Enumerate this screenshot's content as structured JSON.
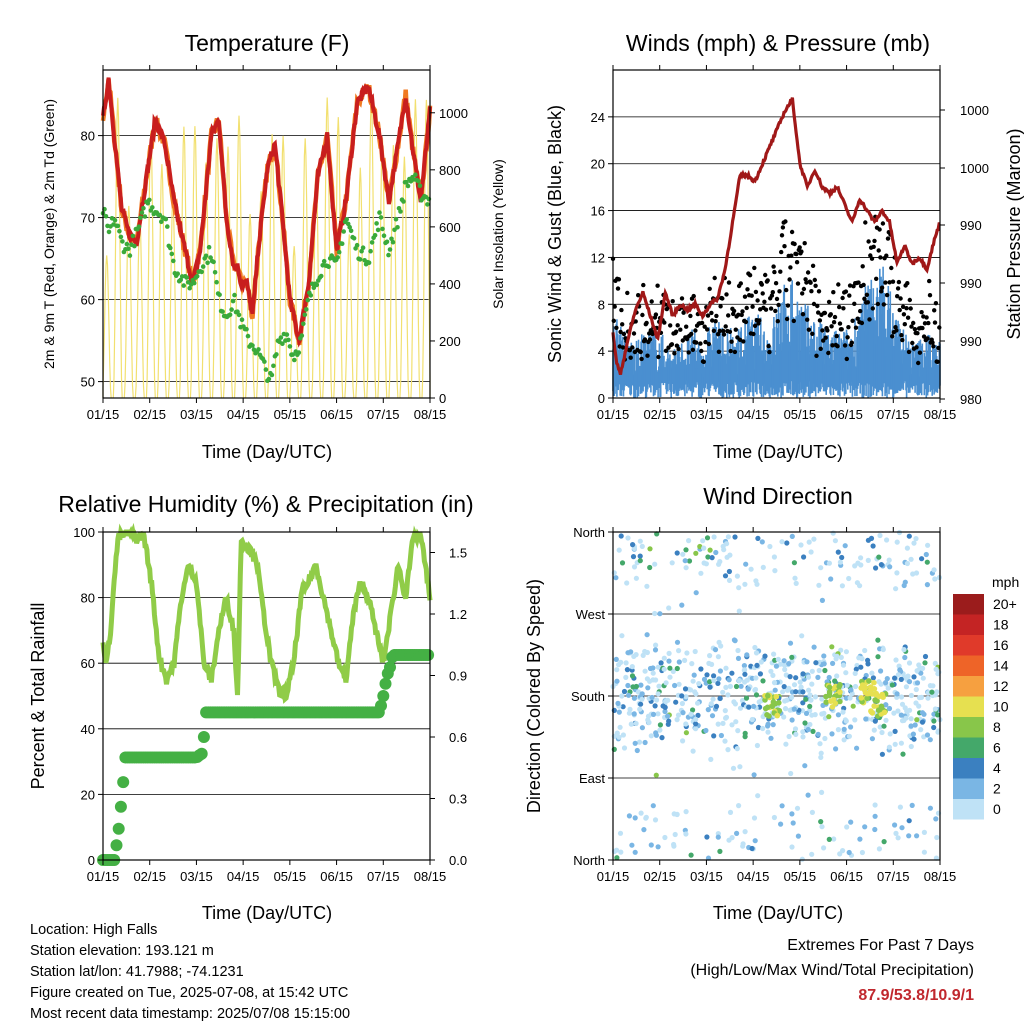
{
  "colors": {
    "temp2m": "#c81e1e",
    "temp9m": "#f07a22",
    "dewpoint": "#3aaa3a",
    "solar": "#f2e070",
    "wind": "#4a8fd0",
    "gust": "#000000",
    "pressure": "#a01818",
    "rh": "#90cc48",
    "precip": "#44b044",
    "extremes": "#c0282e"
  },
  "chart_data": [
    {
      "type": "line",
      "title": "Temperature (F)",
      "xlabel": "Time (Day/UTC)",
      "ylabel": "2m & 9m T (Red, Orange) & 2m Td (Green)",
      "y2label": "Solar Insolation (Yellow)",
      "xticks": [
        "01/15",
        "02/15",
        "03/15",
        "04/15",
        "05/15",
        "06/15",
        "07/15",
        "08/15"
      ],
      "ylim": [
        48,
        88
      ],
      "yticks": [
        50,
        60,
        70,
        80
      ],
      "y2lim": [
        0,
        1150
      ],
      "y2ticks": [
        0,
        200,
        400,
        600,
        800,
        1000
      ],
      "series": [
        {
          "role": "temp2m",
          "x": [
            0,
            3,
            6,
            10,
            14,
            18,
            24,
            28,
            33,
            38,
            44,
            48,
            52,
            58,
            62,
            66,
            70,
            72,
            74,
            77,
            80,
            83,
            88,
            92,
            96,
            100,
            105,
            110,
            115,
            120,
            125,
            130,
            136,
            142,
            148,
            153,
            158,
            162,
            166,
            170,
            175
          ],
          "values": [
            82,
            87,
            80,
            71,
            68,
            67,
            76,
            82,
            79,
            72,
            66,
            62,
            66,
            80,
            82,
            70,
            64,
            64,
            62,
            62,
            58,
            66,
            76,
            79,
            70,
            60,
            55,
            62,
            75,
            80,
            66,
            72,
            84,
            86,
            80,
            72,
            79,
            85,
            78,
            72,
            83
          ]
        },
        {
          "role": "dewpoint",
          "x": [
            0,
            3,
            6,
            10,
            14,
            18,
            24,
            28,
            33,
            38,
            44,
            48,
            52,
            58,
            62,
            66,
            70,
            74,
            78,
            82,
            86,
            90,
            94,
            98,
            102,
            106,
            110,
            115,
            120,
            125,
            130,
            136,
            142,
            148,
            153,
            158,
            162,
            166,
            170,
            175
          ],
          "values": [
            71,
            68,
            70,
            67,
            66,
            68,
            72,
            71,
            70,
            64,
            62,
            62,
            64,
            66,
            60,
            58,
            60,
            57,
            55,
            54,
            52,
            50,
            55,
            56,
            53,
            55,
            60,
            63,
            65,
            64,
            70,
            66,
            65,
            70,
            66,
            70,
            74,
            75,
            73,
            72
          ]
        }
      ]
    },
    {
      "type": "scatter",
      "title": "Winds (mph) & Pressure (mb)",
      "xlabel": "Time (Day/UTC)",
      "ylabel": "Sonic Wind & Gust (Blue, Black)",
      "y2label": "Station Pressure (Maroon)",
      "xticks": [
        "01/15",
        "02/15",
        "03/15",
        "04/15",
        "05/15",
        "06/15",
        "07/15",
        "08/15"
      ],
      "ylim": [
        0,
        28
      ],
      "yticks": [
        0,
        4,
        8,
        12,
        16,
        20,
        24
      ],
      "y2ticks": [
        "980",
        "990",
        "990",
        "990",
        "990",
        "1000",
        "1000"
      ],
      "series": [
        {
          "role": "pressure",
          "x": [
            0,
            2,
            4,
            8,
            12,
            16,
            20,
            24,
            28,
            32,
            36,
            40,
            44,
            48,
            52,
            56,
            60,
            64,
            68,
            72,
            76,
            80,
            84,
            88,
            92,
            96,
            100,
            104,
            108,
            112,
            116,
            120,
            124,
            128,
            132,
            136,
            140,
            144,
            148,
            152,
            156,
            160,
            164,
            168,
            172,
            175
          ],
          "values": [
            5.5,
            3,
            2,
            5,
            7.5,
            9,
            7,
            5,
            9,
            7,
            8,
            7.5,
            8,
            7,
            8,
            8.5,
            11,
            15,
            19,
            19,
            18.5,
            20,
            21.5,
            23,
            24.5,
            25.5,
            20,
            18,
            19.5,
            18,
            17.5,
            18,
            16.5,
            15,
            17,
            16,
            15,
            16,
            15,
            11.5,
            13,
            11.5,
            12,
            11,
            13.5,
            15
          ]
        },
        {
          "role": "wind_envelope",
          "x": [
            0,
            6,
            12,
            18,
            24,
            30,
            36,
            42,
            48,
            54,
            60,
            66,
            72,
            78,
            84,
            90,
            96,
            102,
            108,
            114,
            120,
            126,
            132,
            138,
            144,
            150,
            156,
            162,
            168,
            175
          ],
          "values": [
            7,
            5,
            4,
            5,
            5,
            4,
            4,
            5,
            4,
            6,
            5,
            5,
            6,
            6,
            5,
            8,
            9,
            7,
            6,
            5,
            5,
            5,
            7,
            9,
            10,
            7,
            5,
            4,
            5,
            4
          ]
        }
      ]
    },
    {
      "type": "line",
      "title": "Relative Humidity (%) & Precipitation (in)",
      "xlabel": "Time (Day/UTC)",
      "ylabel": "Percent & Total Rainfall",
      "xticks": [
        "01/15",
        "02/15",
        "03/15",
        "04/15",
        "05/15",
        "06/15",
        "07/15",
        "08/15"
      ],
      "ylim": [
        0,
        100
      ],
      "yticks": [
        0,
        20,
        40,
        60,
        80,
        100
      ],
      "y2lim": [
        0,
        1.6
      ],
      "y2ticks": [
        "0.0",
        "0.3",
        "0.6",
        "0.9",
        "1.2",
        "1.5"
      ],
      "series": [
        {
          "role": "rh",
          "x": [
            0,
            2,
            4,
            6,
            8,
            10,
            14,
            18,
            22,
            26,
            30,
            34,
            38,
            42,
            46,
            50,
            54,
            58,
            62,
            66,
            70,
            72,
            74,
            78,
            82,
            86,
            90,
            94,
            98,
            102,
            106,
            110,
            114,
            118,
            122,
            126,
            130,
            134,
            138,
            142,
            146,
            150,
            154,
            158,
            162,
            166,
            170,
            175
          ],
          "values": [
            66,
            60,
            70,
            85,
            98,
            99,
            100,
            98,
            99,
            84,
            62,
            55,
            60,
            80,
            90,
            85,
            60,
            55,
            70,
            80,
            70,
            50,
            98,
            95,
            92,
            75,
            60,
            52,
            50,
            60,
            80,
            85,
            90,
            80,
            70,
            60,
            55,
            75,
            85,
            80,
            70,
            60,
            75,
            90,
            80,
            98,
            99,
            80
          ]
        },
        {
          "role": "precip",
          "x": [
            0,
            6,
            8,
            9,
            10,
            11,
            12,
            50,
            53,
            54,
            55,
            60,
            80,
            100,
            120,
            140,
            148,
            150,
            152,
            154,
            155,
            175
          ],
          "values": [
            0,
            0,
            0.12,
            0.2,
            0.3,
            0.4,
            0.5,
            0.5,
            0.52,
            0.6,
            0.72,
            0.72,
            0.72,
            0.72,
            0.72,
            0.72,
            0.72,
            0.8,
            0.9,
            0.95,
            1.0,
            1.0
          ]
        }
      ]
    },
    {
      "type": "scatter",
      "title": "Wind Direction",
      "xlabel": "Time (Day/UTC)",
      "ylabel": "Direction (Colored By Speed)",
      "xticks": [
        "01/15",
        "02/15",
        "03/15",
        "04/15",
        "05/15",
        "06/15",
        "07/15",
        "08/15"
      ],
      "ylim": [
        0,
        360
      ],
      "yticks": [
        "North",
        "East",
        "South",
        "West",
        "North"
      ],
      "legend_title": "mph",
      "legend_labels": [
        "20+",
        "18",
        "16",
        "14",
        "12",
        "10",
        "8",
        "6",
        "4",
        "2",
        "0"
      ],
      "legend_colors": [
        "#9b1c1c",
        "#c42424",
        "#e03a2a",
        "#ee6428",
        "#f6a040",
        "#e6e050",
        "#88c64a",
        "#44a86a",
        "#3b80c0",
        "#7ab6e4",
        "#bfe2f6"
      ]
    }
  ],
  "info": {
    "location": "Location: High Falls",
    "elevation": "Station elevation: 193.121 m",
    "latlon": "Station lat/lon: 41.7988; -74.1231",
    "created": "Figure created on Tue, 2025-07-08, at 15:42 UTC",
    "recent": "Most recent data timestamp: 2025/07/08 15:15:00"
  },
  "extremes": {
    "title": "Extremes For Past 7 Days",
    "subtitle": "(High/Low/Max Wind/Total Precipitation)",
    "values": "87.9/53.8/10.9/1"
  }
}
